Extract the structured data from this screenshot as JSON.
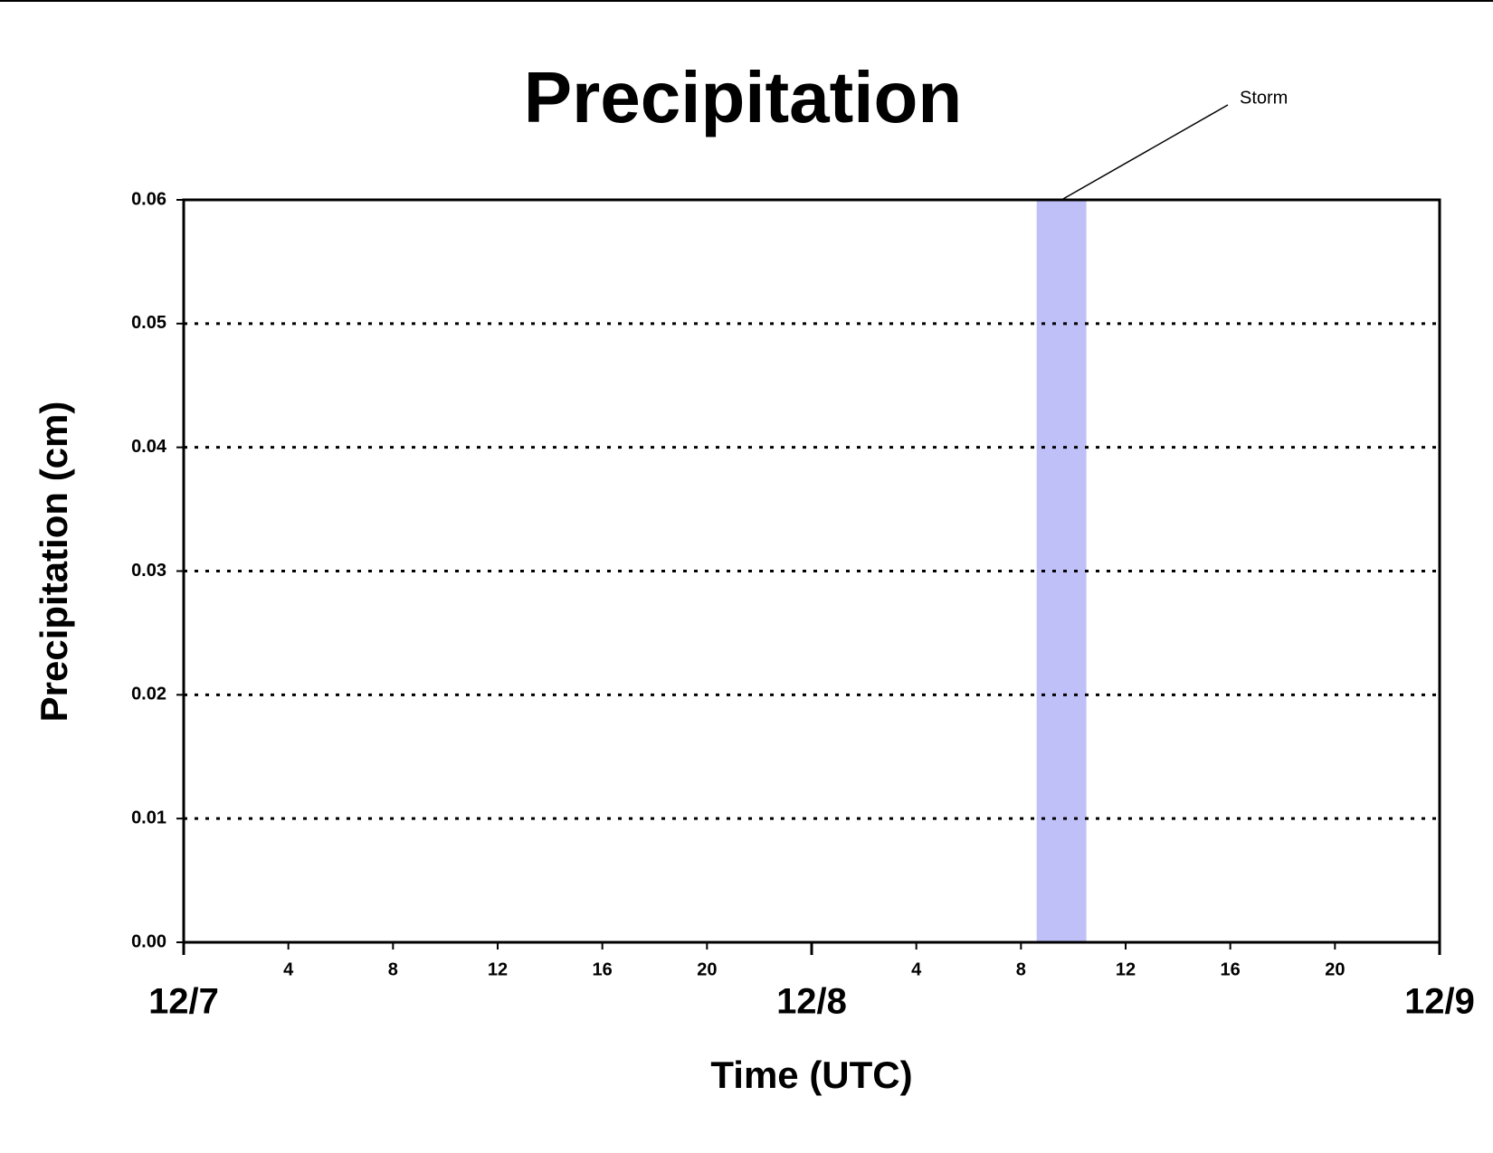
{
  "chart_data": {
    "type": "line",
    "title": "Precipitation",
    "xlabel": "Time (UTC)",
    "ylabel": "Precipitation (cm)",
    "x": [
      0,
      4,
      8,
      12,
      16,
      20,
      24,
      28,
      32,
      36,
      40,
      44,
      48
    ],
    "series": [
      {
        "name": "Precipitation",
        "color": "#cc0000",
        "values": [
          0,
          0,
          0,
          0,
          0,
          0,
          0,
          0,
          0,
          0,
          0,
          0,
          0
        ]
      }
    ],
    "xlim": [
      0,
      48
    ],
    "xticks": [
      4,
      8,
      12,
      16,
      20,
      {
        "value": 28,
        "label": "4"
      },
      {
        "value": 32,
        "label": "8"
      },
      {
        "value": 36,
        "label": "12"
      },
      {
        "value": 40,
        "label": "16"
      },
      {
        "value": 44,
        "label": "20"
      }
    ],
    "xmajorticks": [
      {
        "value": 0,
        "label": "12/7"
      },
      {
        "value": 24,
        "label": "12/8"
      },
      {
        "value": 48,
        "label": "12/9"
      }
    ],
    "ylim": [
      0,
      0.06
    ],
    "yticks": [
      {
        "value": 0,
        "label": "0.00"
      },
      0.01,
      0.02,
      0.03,
      0.04,
      0.05,
      0.06
    ],
    "grid": true,
    "shaded_regions": [
      {
        "xrange": [
          32.6,
          34.5
        ],
        "color": "#c0c0f8",
        "annotation": "Storm"
      }
    ]
  }
}
